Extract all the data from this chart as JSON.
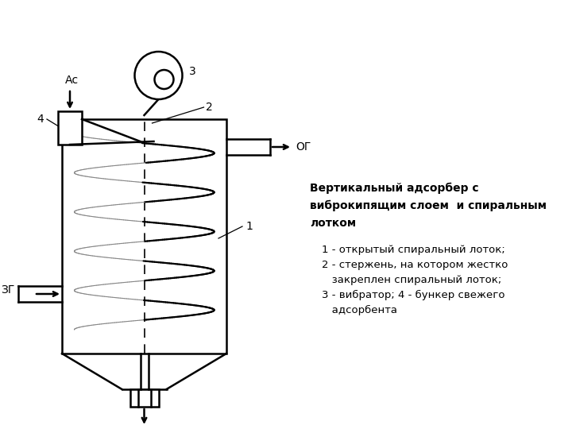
{
  "bg_color": "#ffffff",
  "line_color": "#000000",
  "title": "Вертикальный адсорбер с\nвиброкипящим слоем  и спиральным\nлотком",
  "legend_items": [
    "1 - открытый спиральный лоток;",
    "2 - стержень, на котором жестко\n   закреплен спиральный лоток;",
    "3 - вибратор; 4 - бункер свежего\n   адсорбента"
  ]
}
